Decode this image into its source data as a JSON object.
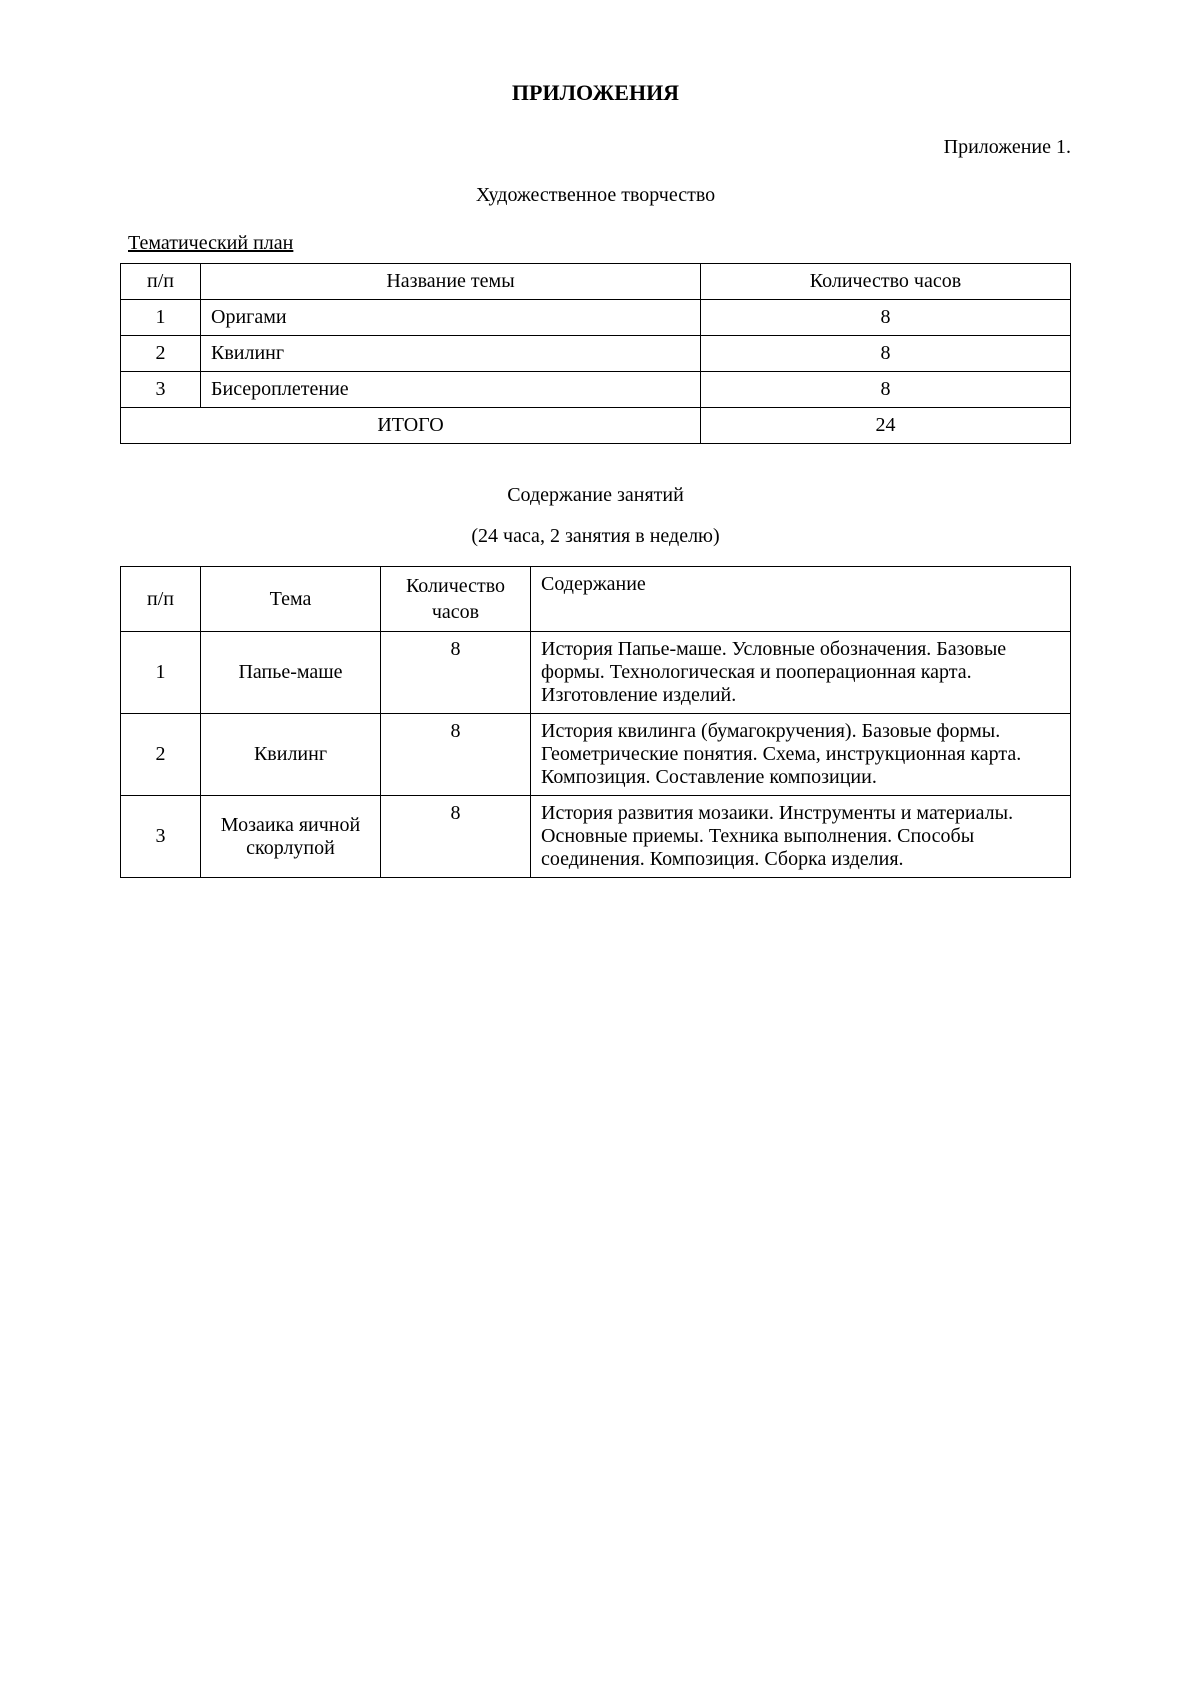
{
  "main_title": "ПРИЛОЖЕНИЯ",
  "appendix_label": "Приложение 1.",
  "section_title": "Художественное творчество",
  "plan_title": "Тематический план",
  "table1": {
    "headers": {
      "num": "п/п",
      "name": "Название темы",
      "hours": "Количество часов"
    },
    "rows": [
      {
        "num": "1",
        "name": "Оригами",
        "hours": "8"
      },
      {
        "num": "2",
        "name": "Квилинг",
        "hours": "8"
      },
      {
        "num": "3",
        "name": "Бисероплетение",
        "hours": "8"
      }
    ],
    "total_label": "ИТОГО",
    "total_hours": "24"
  },
  "content_title": "Содержание занятий",
  "content_subtitle": "(24 часа, 2 занятия в неделю)",
  "table2": {
    "headers": {
      "num": "п/п",
      "topic": "Тема",
      "hours": "Количество часов",
      "content": "Содержание"
    },
    "rows": [
      {
        "num": "1",
        "topic": "Папье-маше",
        "hours": "8",
        "content": "История Папье-маше. Условные обозначения. Базовые формы. Технологическая и пооперационная карта. Изготовление изделий."
      },
      {
        "num": "2",
        "topic": "Квилинг",
        "hours": "8",
        "content": "История квилинга (бумагокручения). Базовые формы. Геометрические понятия. Схема, инструкционная карта. Композиция. Составление композиции."
      },
      {
        "num": "3",
        "topic": "Мозаика яичной скорлупой",
        "hours": "8",
        "content": "История развития мозаики. Инструменты и материалы. Основные приемы. Техника выполнения. Способы соединения. Композиция. Сборка изделия."
      }
    ]
  }
}
